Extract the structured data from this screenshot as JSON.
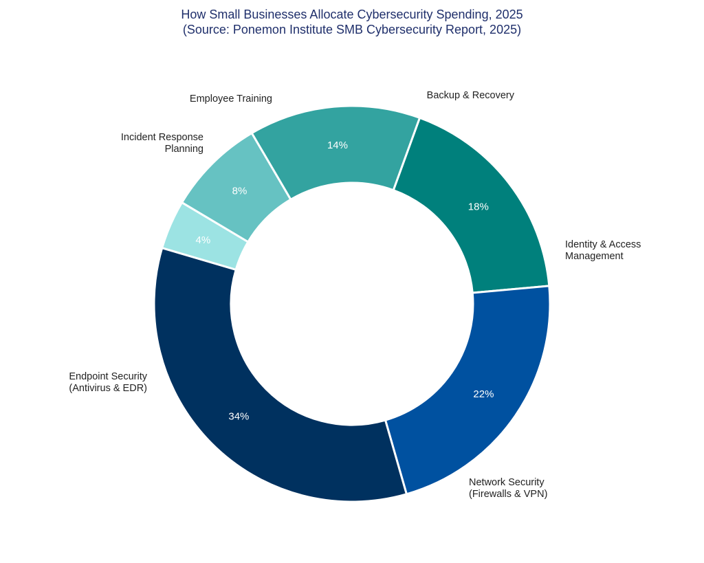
{
  "chart_data": {
    "type": "pie",
    "donut": true,
    "title": "How Small Businesses Allocate Cybersecurity Spending, 2025",
    "subtitle": "(Source: Ponemon Institute SMB Cybersecurity Report, 2025)",
    "slices": [
      {
        "label": "Identity & Access Management",
        "value": 18,
        "display": "18%",
        "color": "#00807c"
      },
      {
        "label": "Network Security (Firewalls & VPN)",
        "value": 22,
        "display": "22%",
        "color": "#0051a0"
      },
      {
        "label": "Endpoint Security (Antivirus & EDR)",
        "value": 34,
        "display": "34%",
        "color": "#00315f"
      },
      {
        "label": "Incident Response Planning",
        "value": 4,
        "display": "4%",
        "color": "#9ce3e3"
      },
      {
        "label": "Employee Training",
        "value": 8,
        "display": "8%",
        "color": "#66c2c2"
      },
      {
        "label": "Backup & Recovery",
        "value": 14,
        "display": "14%",
        "color": "#33a3a0"
      }
    ],
    "legend": "none"
  }
}
